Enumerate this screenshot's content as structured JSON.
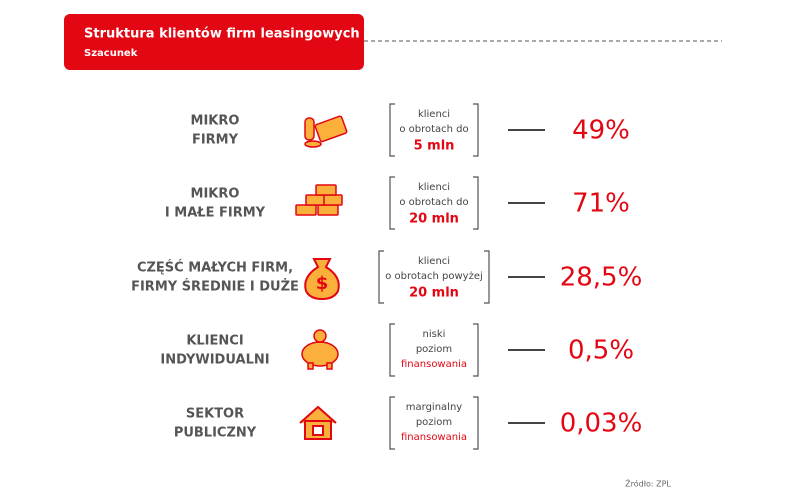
{
  "header": {
    "title": "Struktura klientów firm leasingowych",
    "subtitle": "Szacunek"
  },
  "rows": [
    {
      "label": [
        "MIKRO",
        "FIRMY"
      ],
      "description": [
        "klienci",
        "o obrotach do",
        "5 mln"
      ],
      "value": "49%"
    },
    {
      "label": [
        "MIKRO",
        "I MAŁE FIRMY"
      ],
      "description": [
        "klienci",
        "o obrotach do",
        "20 mln"
      ],
      "value": "71%"
    },
    {
      "label": [
        "CZĘŚĆ MAŁYCH FIRM,",
        "FIRMY ŚREDNIE I DUŻE"
      ],
      "description": [
        "klienci",
        "o obrotach powyżej",
        "20 mln"
      ],
      "value": "28,5%"
    },
    {
      "label": [
        "KLIENCI",
        "INDYWIDUALNI"
      ],
      "description": [
        "niski",
        "poziom",
        "finansowania"
      ],
      "value": "0,5%"
    },
    {
      "label": [
        "SEKTOR",
        "PUBLICZNY"
      ],
      "description": [
        "marginalny",
        "poziom",
        "finansowania"
      ],
      "value": "0,03%"
    }
  ],
  "source": "Źródło: ZPL"
}
